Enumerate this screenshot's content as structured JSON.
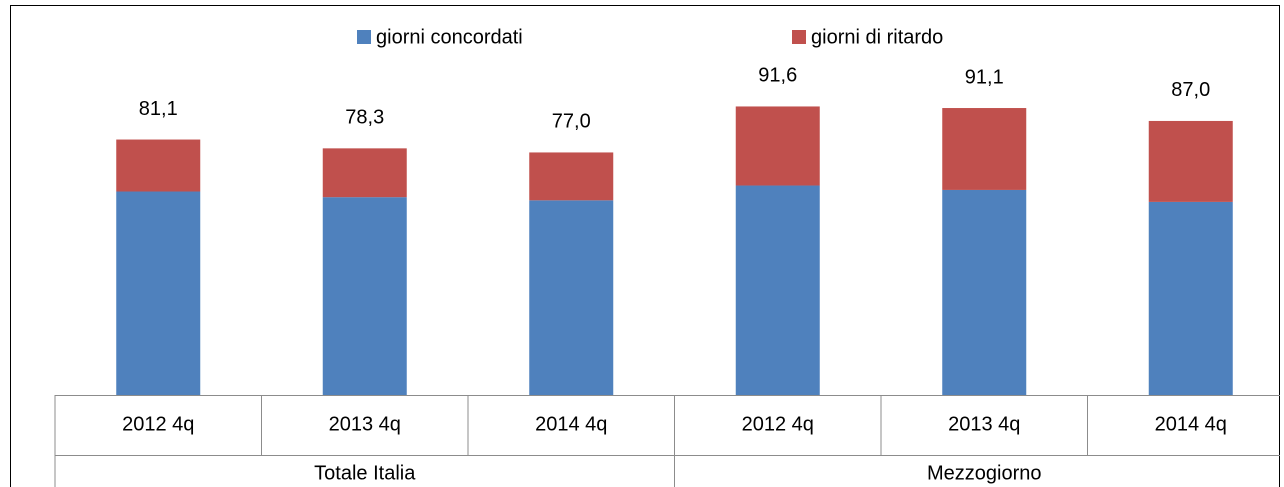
{
  "chart_data": {
    "type": "stacked_bar",
    "groups": [
      {
        "name": "Totale Italia",
        "categories": [
          "2012 4q",
          "2013 4q",
          "2014 4q"
        ]
      },
      {
        "name": "Mezzogiorno",
        "categories": [
          "2012 4q",
          "2013 4q",
          "2014 4q"
        ]
      }
    ],
    "series": [
      {
        "name": "giorni concordati",
        "color": "#4f81bd",
        "values": [
          64.6,
          62.8,
          61.8,
          66.5,
          65.1,
          61.3
        ]
      },
      {
        "name": "giorni di ritardo",
        "color": "#c0504d",
        "values": [
          16.5,
          15.5,
          15.2,
          25.1,
          26.0,
          25.7
        ]
      }
    ],
    "totals": [
      81.1,
      78.3,
      77.0,
      91.6,
      91.1,
      87.0
    ],
    "total_labels": [
      "81,1",
      "78,3",
      "77,0",
      "91,6",
      "91,1",
      "87,0"
    ],
    "ylim": [
      0,
      100
    ],
    "legend": "top"
  }
}
